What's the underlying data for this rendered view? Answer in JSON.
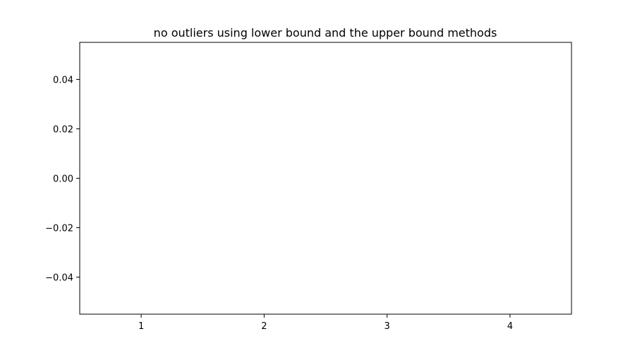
{
  "chart_data": {
    "type": "box",
    "title": "no outliers using lower bound and the upper bound methods",
    "xlabel": "",
    "ylabel": "",
    "x_ticks": [
      1,
      2,
      3,
      4
    ],
    "y_ticks": [
      -0.04,
      -0.02,
      0.0,
      0.02,
      0.04
    ],
    "y_tick_labels": [
      "−0.04",
      "−0.02",
      "0.00",
      "0.02",
      "0.04"
    ],
    "x_tick_labels": [
      "1",
      "2",
      "3",
      "4"
    ],
    "xlim": [
      0.5,
      4.5
    ],
    "ylim": [
      -0.055,
      0.055
    ],
    "series": [],
    "grid": false,
    "legend": "none"
  }
}
